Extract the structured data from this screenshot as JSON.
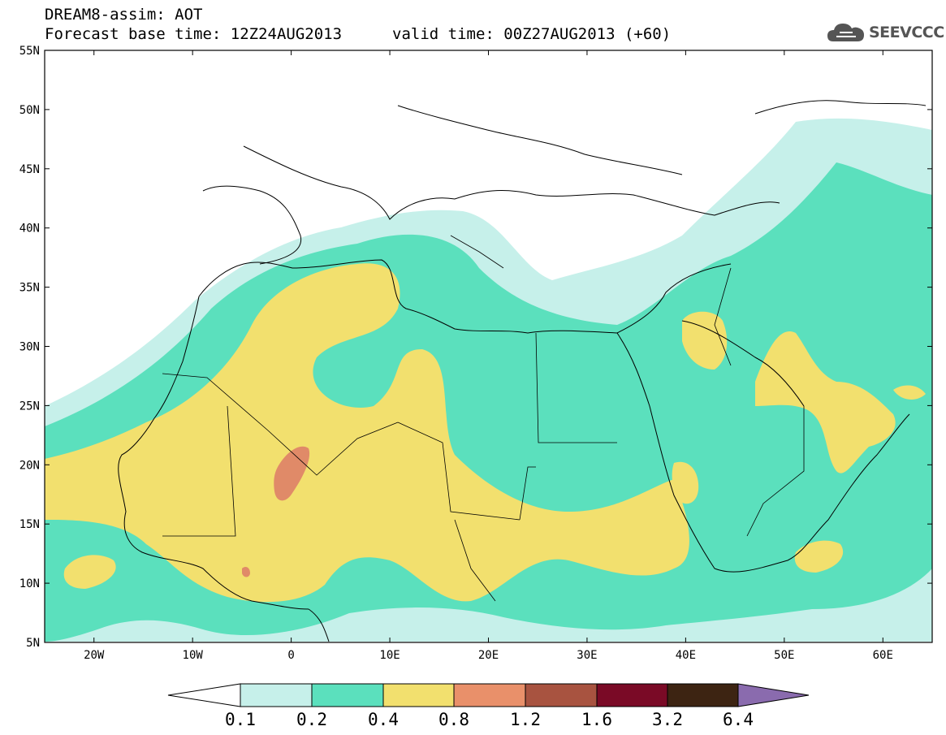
{
  "header": {
    "title_line1": "DREAM8-assim: AOT",
    "title_line2": "Forecast base time: 12Z24AUG2013",
    "valid_time": "valid time: 00Z27AUG2013 (+60)",
    "logo_text": "SEEVCCC"
  },
  "map": {
    "lat_labels": [
      "55N",
      "50N",
      "45N",
      "40N",
      "35N",
      "30N",
      "25N",
      "20N",
      "15N",
      "10N",
      "5N"
    ],
    "lon_labels": [
      "20W",
      "10W",
      "0",
      "10E",
      "20E",
      "30E",
      "40E",
      "50E",
      "60E"
    ],
    "extent": {
      "lon_min": -25,
      "lon_max": 65,
      "lat_min": 5,
      "lat_max": 55
    }
  },
  "colorbar": {
    "labels": [
      "0.1",
      "0.2",
      "0.4",
      "0.8",
      "1.2",
      "1.6",
      "3.2",
      "6.4"
    ],
    "colors": [
      "#ffffff",
      "#c6f0ea",
      "#5be0bd",
      "#f2e06e",
      "#e9906a",
      "#a85340",
      "#7a0a26",
      "#3d2412",
      "#8a6bae"
    ]
  }
}
